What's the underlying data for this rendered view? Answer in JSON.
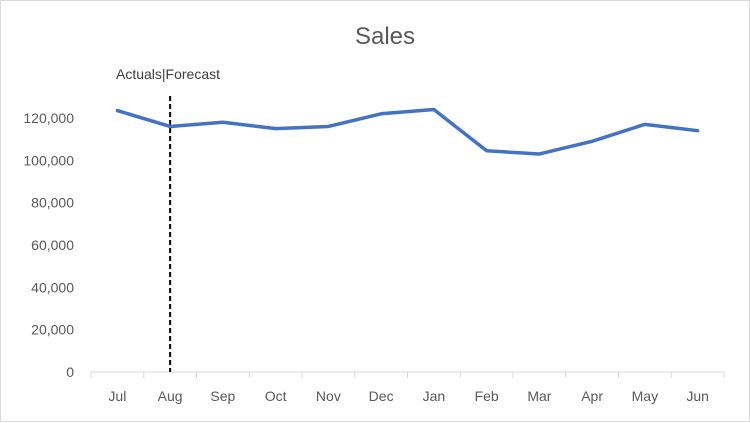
{
  "chart_data": {
    "type": "line",
    "title": "Sales",
    "categories": [
      "Jul",
      "Aug",
      "Sep",
      "Oct",
      "Nov",
      "Dec",
      "Jan",
      "Feb",
      "Mar",
      "Apr",
      "May",
      "Jun"
    ],
    "series": [
      {
        "values": [
          123500,
          116000,
          118000,
          115000,
          116000,
          122000,
          124000,
          104500,
          103000,
          109000,
          117000,
          114000
        ],
        "color": "#4472C4"
      }
    ],
    "ylim": [
      0,
      120000
    ],
    "yticks": [
      "0",
      "20,000",
      "40,000",
      "60,000",
      "80,000",
      "100,000",
      "120,000"
    ],
    "grid": false,
    "annotation": {
      "text": "Actuals|Forecast",
      "at_category": "Aug",
      "line_style": "dashed",
      "line_color": "#000000"
    }
  }
}
